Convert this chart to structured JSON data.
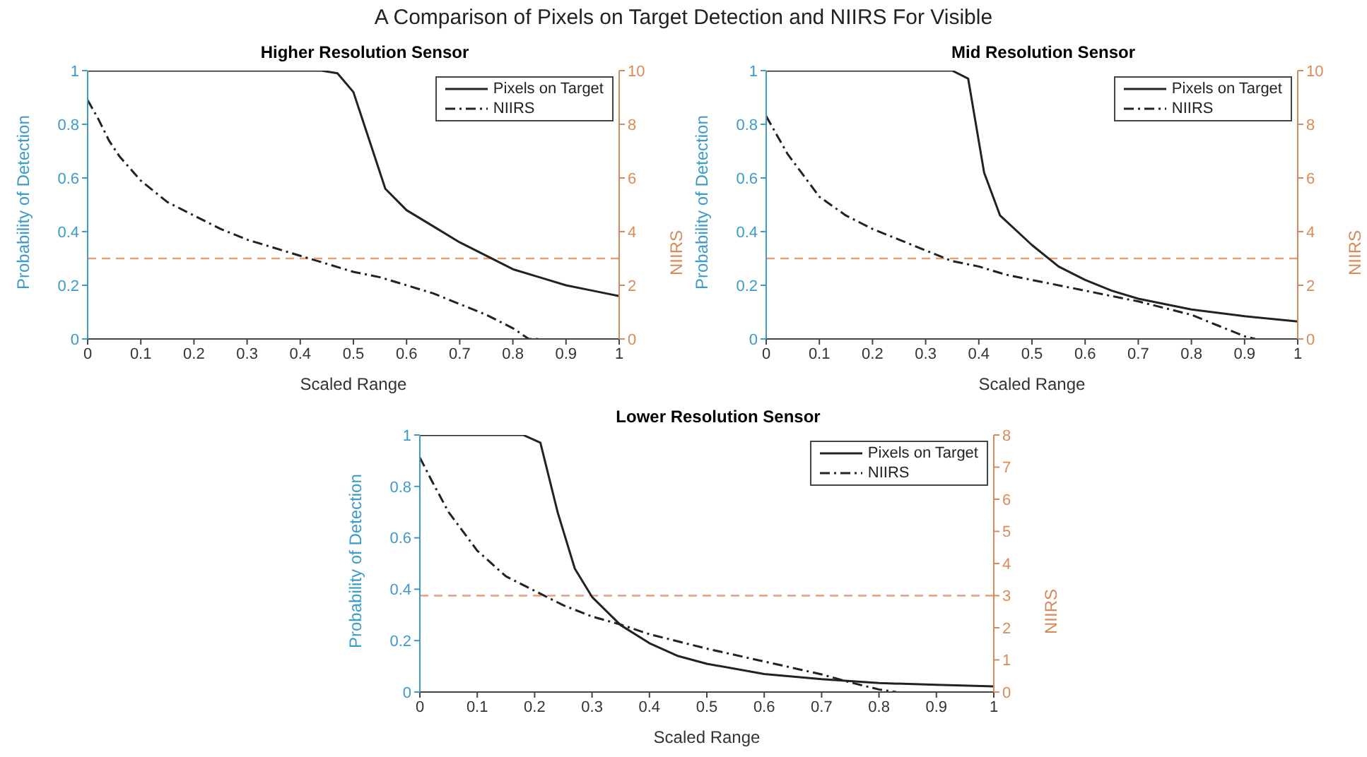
{
  "chart_data": [
    {
      "type": "line",
      "title": "A Comparison of Pixels on Target Detection and NIIRS For Visible",
      "subtitle": "Higher Resolution Sensor",
      "xlabel": "Scaled Range",
      "ylabel": "Probability of Detection",
      "y2label": "NIIRS",
      "xlim": [
        0,
        1
      ],
      "xticks": [
        0,
        0.1,
        0.2,
        0.3,
        0.4,
        0.5,
        0.6,
        0.7,
        0.8,
        0.9,
        1
      ],
      "ylim": [
        0,
        1
      ],
      "yticks": [
        0,
        0.2,
        0.4,
        0.6,
        0.8,
        1
      ],
      "y2lim": [
        0,
        10
      ],
      "y2ticks": [
        0,
        2,
        4,
        6,
        8,
        10
      ],
      "legend": "top right",
      "grid": false,
      "marker": "none",
      "series": [
        {
          "name": "Pixels on Target",
          "color": "#222222",
          "line_style": "solid",
          "x": [
            0,
            0.1,
            0.2,
            0.3,
            0.44,
            0.47,
            0.5,
            0.53,
            0.56,
            0.6,
            0.65,
            0.7,
            0.75,
            0.8,
            0.85,
            0.9,
            0.95,
            1
          ],
          "values": [
            1,
            1,
            1,
            1,
            1,
            0.99,
            0.92,
            0.74,
            0.56,
            0.48,
            0.42,
            0.36,
            0.31,
            0.26,
            0.23,
            0.2,
            0.18,
            0.16
          ]
        },
        {
          "name": "NIIRS",
          "color": "#222222",
          "line_style": "dashdot",
          "axis": "y2",
          "x": [
            0,
            0.02,
            0.04,
            0.06,
            0.1,
            0.15,
            0.2,
            0.25,
            0.3,
            0.35,
            0.4,
            0.45,
            0.5,
            0.55,
            0.6,
            0.65,
            0.7,
            0.75,
            0.8,
            0.83,
            0.85
          ],
          "values": [
            8.9,
            8.2,
            7.4,
            6.8,
            5.9,
            5.1,
            4.6,
            4.1,
            3.7,
            3.4,
            3.1,
            2.8,
            2.5,
            2.3,
            2.0,
            1.7,
            1.3,
            0.9,
            0.4,
            0,
            0
          ]
        }
      ],
      "ref_lines": [
        {
          "axis": "y2",
          "value": 3,
          "color": "#e8a07a",
          "line_style": "dashed"
        }
      ]
    },
    {
      "type": "line",
      "subtitle": "Mid Resolution Sensor",
      "xlabel": "Scaled Range",
      "ylabel": "Probability of Detection",
      "y2label": "NIIRS",
      "xlim": [
        0,
        1
      ],
      "xticks": [
        0,
        0.1,
        0.2,
        0.3,
        0.4,
        0.5,
        0.6,
        0.7,
        0.8,
        0.9,
        1
      ],
      "ylim": [
        0,
        1
      ],
      "yticks": [
        0,
        0.2,
        0.4,
        0.6,
        0.8,
        1
      ],
      "y2lim": [
        0,
        10
      ],
      "y2ticks": [
        0,
        2,
        4,
        6,
        8,
        10
      ],
      "legend": "top right",
      "grid": false,
      "marker": "none",
      "series": [
        {
          "name": "Pixels on Target",
          "color": "#222222",
          "line_style": "solid",
          "x": [
            0,
            0.1,
            0.2,
            0.3,
            0.35,
            0.38,
            0.41,
            0.44,
            0.5,
            0.55,
            0.6,
            0.65,
            0.7,
            0.8,
            0.9,
            1
          ],
          "values": [
            1,
            1,
            1,
            1,
            1,
            0.97,
            0.62,
            0.46,
            0.35,
            0.27,
            0.22,
            0.18,
            0.15,
            0.11,
            0.085,
            0.065
          ]
        },
        {
          "name": "NIIRS",
          "color": "#222222",
          "line_style": "dashdot",
          "axis": "y2",
          "x": [
            0,
            0.02,
            0.04,
            0.07,
            0.1,
            0.15,
            0.2,
            0.25,
            0.3,
            0.35,
            0.4,
            0.45,
            0.5,
            0.6,
            0.7,
            0.8,
            0.85,
            0.9,
            0.92
          ],
          "values": [
            8.3,
            7.6,
            6.9,
            6.1,
            5.3,
            4.6,
            4.1,
            3.7,
            3.3,
            2.9,
            2.7,
            2.4,
            2.2,
            1.8,
            1.4,
            0.9,
            0.5,
            0.1,
            0
          ]
        }
      ],
      "ref_lines": [
        {
          "axis": "y2",
          "value": 3,
          "color": "#e8a07a",
          "line_style": "dashed"
        }
      ]
    },
    {
      "type": "line",
      "subtitle": "Lower Resolution Sensor",
      "xlabel": "Scaled Range",
      "ylabel": "Probability of Detection",
      "y2label": "NIIRS",
      "xlim": [
        0,
        1
      ],
      "xticks": [
        0,
        0.1,
        0.2,
        0.3,
        0.4,
        0.5,
        0.6,
        0.7,
        0.8,
        0.9,
        1
      ],
      "ylim": [
        0,
        1
      ],
      "yticks": [
        0,
        0.2,
        0.4,
        0.6,
        0.8,
        1
      ],
      "y2lim": [
        0,
        8
      ],
      "y2ticks": [
        0,
        1,
        2,
        3,
        4,
        5,
        6,
        7,
        8
      ],
      "legend": "top right",
      "grid": false,
      "marker": "none",
      "series": [
        {
          "name": "Pixels on Target",
          "color": "#222222",
          "line_style": "solid",
          "x": [
            0,
            0.1,
            0.18,
            0.21,
            0.24,
            0.27,
            0.3,
            0.35,
            0.4,
            0.45,
            0.5,
            0.6,
            0.7,
            0.8,
            0.9,
            1
          ],
          "values": [
            1,
            1,
            1,
            0.97,
            0.7,
            0.48,
            0.37,
            0.26,
            0.19,
            0.14,
            0.11,
            0.07,
            0.05,
            0.035,
            0.028,
            0.022
          ]
        },
        {
          "name": "NIIRS",
          "color": "#222222",
          "line_style": "dashdot",
          "axis": "y2",
          "x": [
            0,
            0.02,
            0.05,
            0.1,
            0.15,
            0.2,
            0.25,
            0.3,
            0.35,
            0.4,
            0.5,
            0.6,
            0.7,
            0.75,
            0.8,
            0.83
          ],
          "values": [
            7.3,
            6.6,
            5.6,
            4.4,
            3.6,
            3.15,
            2.7,
            2.35,
            2.1,
            1.8,
            1.35,
            0.95,
            0.55,
            0.3,
            0.08,
            0
          ]
        }
      ],
      "ref_lines": [
        {
          "axis": "y2",
          "value": 3,
          "color": "#e8a07a",
          "line_style": "dashed"
        }
      ]
    }
  ]
}
